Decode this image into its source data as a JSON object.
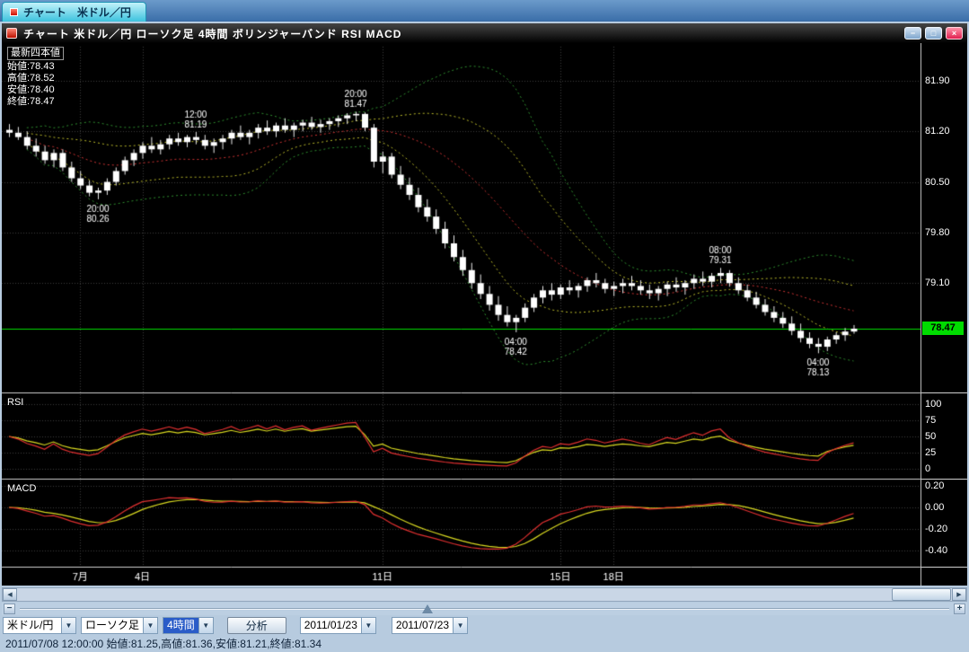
{
  "tab_bar": {
    "tabs": [
      {
        "label": "チャート　米ドル／円"
      }
    ]
  },
  "titlebar": {
    "title": "チャート  米ドル／円  ローソク足  4時間  ボリンジャーバンド  RSI  MACD",
    "controls": {
      "minimize": "−",
      "restore": "□",
      "close": "×"
    }
  },
  "info_panel": {
    "title": "最新四本値",
    "lines": [
      "始値:78.43",
      "高値:78.52",
      "安値:78.40",
      "終値:78.47"
    ]
  },
  "chart_data": {
    "type": "candlestick",
    "title": "米ドル／円 4時間 ローソク足",
    "indicators": [
      "ボリンジャーバンド",
      "RSI",
      "MACD"
    ],
    "x_ticks": [
      {
        "index": 8,
        "label": "7月"
      },
      {
        "index": 15,
        "label": "4日"
      },
      {
        "index": 42,
        "label": "11日"
      },
      {
        "index": 62,
        "label": "15日"
      },
      {
        "index": 68,
        "label": "18日"
      }
    ],
    "main_axis": {
      "ylim": [
        77.6,
        82.37
      ],
      "ticks": [
        81.9,
        81.2,
        80.5,
        79.8,
        79.1
      ]
    },
    "rsi": {
      "label": "RSI",
      "ylim": [
        0,
        100
      ],
      "ticks": [
        100,
        75,
        50,
        25,
        0
      ]
    },
    "macd": {
      "label": "MACD",
      "ticks": [
        {
          "label": "0.20",
          "value": 0.2
        },
        {
          "label": "0.00",
          "value": 0.0
        },
        {
          "label": "-0.20",
          "value": -0.2
        },
        {
          "label": "-0.40",
          "value": -0.4
        }
      ]
    },
    "last_price": {
      "value": 78.47,
      "label": "78.47"
    },
    "annotations": [
      {
        "index": 10,
        "price": 80.26,
        "time": "20:00",
        "text": "80.26",
        "side": "below"
      },
      {
        "index": 21,
        "price": 81.19,
        "time": "12:00",
        "text": "81.19",
        "side": "above"
      },
      {
        "index": 39,
        "price": 81.47,
        "time": "20:00",
        "text": "81.47",
        "side": "above"
      },
      {
        "index": 57,
        "price": 78.42,
        "time": "04:00",
        "text": "78.42",
        "side": "below"
      },
      {
        "index": 80,
        "price": 79.31,
        "time": "08:00",
        "text": "79.31",
        "side": "above"
      },
      {
        "index": 91,
        "price": 78.13,
        "time": "04:00",
        "text": "78.13",
        "side": "below"
      }
    ],
    "bollinger": {
      "period": 20,
      "deviations": [
        1,
        2
      ]
    },
    "rsi_periods": [
      9,
      14
    ],
    "macd_params": {
      "fast": 5,
      "slow": 10,
      "signal": 5
    },
    "candles": [
      [
        81.22,
        81.3,
        81.12,
        81.18
      ],
      [
        81.18,
        81.26,
        81.08,
        81.12
      ],
      [
        81.12,
        81.2,
        80.95,
        81.0
      ],
      [
        81.0,
        81.1,
        80.85,
        80.92
      ],
      [
        80.92,
        81.0,
        80.75,
        80.8
      ],
      [
        80.8,
        80.95,
        80.7,
        80.9
      ],
      [
        80.9,
        80.95,
        80.65,
        80.7
      ],
      [
        80.7,
        80.78,
        80.5,
        80.55
      ],
      [
        80.55,
        80.65,
        80.4,
        80.45
      ],
      [
        80.45,
        80.52,
        80.3,
        80.35
      ],
      [
        80.35,
        80.42,
        80.26,
        80.38
      ],
      [
        80.38,
        80.55,
        80.32,
        80.5
      ],
      [
        80.5,
        80.7,
        80.45,
        80.65
      ],
      [
        80.65,
        80.85,
        80.6,
        80.8
      ],
      [
        80.8,
        80.95,
        80.72,
        80.9
      ],
      [
        80.9,
        81.05,
        80.82,
        81.0
      ],
      [
        81.0,
        81.12,
        80.9,
        80.95
      ],
      [
        80.95,
        81.08,
        80.88,
        81.02
      ],
      [
        81.02,
        81.15,
        80.95,
        81.1
      ],
      [
        81.1,
        81.18,
        81.0,
        81.05
      ],
      [
        81.05,
        81.15,
        80.98,
        81.12
      ],
      [
        81.12,
        81.19,
        81.02,
        81.08
      ],
      [
        81.08,
        81.15,
        80.95,
        81.0
      ],
      [
        81.0,
        81.1,
        80.9,
        81.05
      ],
      [
        81.05,
        81.15,
        80.95,
        81.1
      ],
      [
        81.1,
        81.22,
        81.02,
        81.18
      ],
      [
        81.18,
        81.28,
        81.08,
        81.12
      ],
      [
        81.12,
        81.22,
        81.02,
        81.18
      ],
      [
        81.18,
        81.3,
        81.1,
        81.25
      ],
      [
        81.25,
        81.35,
        81.15,
        81.2
      ],
      [
        81.2,
        81.32,
        81.12,
        81.28
      ],
      [
        81.28,
        81.38,
        81.18,
        81.22
      ],
      [
        81.22,
        81.32,
        81.12,
        81.28
      ],
      [
        81.28,
        81.36,
        81.2,
        81.32
      ],
      [
        81.32,
        81.4,
        81.22,
        81.26
      ],
      [
        81.26,
        81.36,
        81.18,
        81.3
      ],
      [
        81.3,
        81.38,
        81.22,
        81.34
      ],
      [
        81.34,
        81.42,
        81.26,
        81.38
      ],
      [
        81.38,
        81.45,
        81.3,
        81.42
      ],
      [
        81.42,
        81.47,
        81.34,
        81.44
      ],
      [
        81.44,
        81.46,
        81.2,
        81.25
      ],
      [
        81.25,
        81.3,
        80.7,
        80.78
      ],
      [
        80.78,
        80.92,
        80.62,
        80.85
      ],
      [
        80.85,
        80.9,
        80.55,
        80.6
      ],
      [
        80.6,
        80.72,
        80.4,
        80.46
      ],
      [
        80.46,
        80.56,
        80.25,
        80.32
      ],
      [
        80.32,
        80.42,
        80.08,
        80.15
      ],
      [
        80.15,
        80.26,
        79.95,
        80.02
      ],
      [
        80.02,
        80.12,
        79.78,
        79.85
      ],
      [
        79.85,
        79.95,
        79.58,
        79.65
      ],
      [
        79.65,
        79.76,
        79.4,
        79.46
      ],
      [
        79.46,
        79.56,
        79.2,
        79.28
      ],
      [
        79.28,
        79.38,
        79.02,
        79.1
      ],
      [
        79.1,
        79.22,
        78.88,
        78.95
      ],
      [
        78.95,
        79.06,
        78.72,
        78.8
      ],
      [
        78.8,
        78.92,
        78.58,
        78.66
      ],
      [
        78.66,
        78.78,
        78.5,
        78.56
      ],
      [
        78.56,
        78.66,
        78.42,
        78.62
      ],
      [
        78.62,
        78.82,
        78.56,
        78.76
      ],
      [
        78.76,
        78.95,
        78.7,
        78.9
      ],
      [
        78.9,
        79.06,
        78.82,
        79.0
      ],
      [
        79.0,
        79.1,
        78.86,
        78.94
      ],
      [
        78.94,
        79.08,
        78.88,
        79.04
      ],
      [
        79.04,
        79.14,
        78.94,
        79.0
      ],
      [
        79.0,
        79.1,
        78.9,
        79.06
      ],
      [
        79.06,
        79.18,
        78.98,
        79.14
      ],
      [
        79.14,
        79.24,
        79.04,
        79.1
      ],
      [
        79.1,
        79.16,
        78.96,
        79.02
      ],
      [
        79.02,
        79.12,
        78.92,
        79.06
      ],
      [
        79.06,
        79.16,
        78.96,
        79.1
      ],
      [
        79.1,
        79.2,
        79.0,
        79.06
      ],
      [
        79.06,
        79.14,
        78.94,
        79.0
      ],
      [
        79.0,
        79.08,
        78.88,
        78.96
      ],
      [
        78.96,
        79.06,
        78.86,
        79.02
      ],
      [
        79.02,
        79.12,
        78.92,
        79.08
      ],
      [
        79.08,
        79.18,
        78.98,
        79.04
      ],
      [
        79.04,
        79.14,
        78.94,
        79.1
      ],
      [
        79.1,
        79.22,
        79.02,
        79.16
      ],
      [
        79.16,
        79.26,
        79.06,
        79.12
      ],
      [
        79.12,
        79.24,
        79.04,
        79.2
      ],
      [
        79.2,
        79.31,
        79.1,
        79.24
      ],
      [
        79.24,
        79.28,
        79.05,
        79.1
      ],
      [
        79.1,
        79.18,
        78.95,
        79.0
      ],
      [
        79.0,
        79.08,
        78.85,
        78.9
      ],
      [
        78.9,
        78.98,
        78.75,
        78.8
      ],
      [
        78.8,
        78.88,
        78.65,
        78.7
      ],
      [
        78.7,
        78.78,
        78.56,
        78.62
      ],
      [
        78.62,
        78.7,
        78.48,
        78.54
      ],
      [
        78.54,
        78.64,
        78.38,
        78.44
      ],
      [
        78.44,
        78.54,
        78.28,
        78.34
      ],
      [
        78.34,
        78.42,
        78.2,
        78.26
      ],
      [
        78.26,
        78.34,
        78.13,
        78.22
      ],
      [
        78.22,
        78.36,
        78.16,
        78.32
      ],
      [
        78.32,
        78.42,
        78.26,
        78.38
      ],
      [
        78.38,
        78.48,
        78.3,
        78.43
      ],
      [
        78.43,
        78.52,
        78.4,
        78.47
      ]
    ]
  },
  "scrollbar": {
    "left_arrow": "◀",
    "right_arrow": "▶"
  },
  "zoom_slider": {
    "minus": "−",
    "plus": "+"
  },
  "toolbar": {
    "symbol": "米ドル/円",
    "chart_type": "ローソク足",
    "timeframe": "4時間",
    "analyze": "分析",
    "date_from": "2011/01/23",
    "date_to": "2011/07/23",
    "arrow": "▼"
  },
  "statusbar": {
    "text": "2011/07/08 12:00:00 始値:81.25,高値:81.36,安値:81.21,終値:81.34"
  }
}
